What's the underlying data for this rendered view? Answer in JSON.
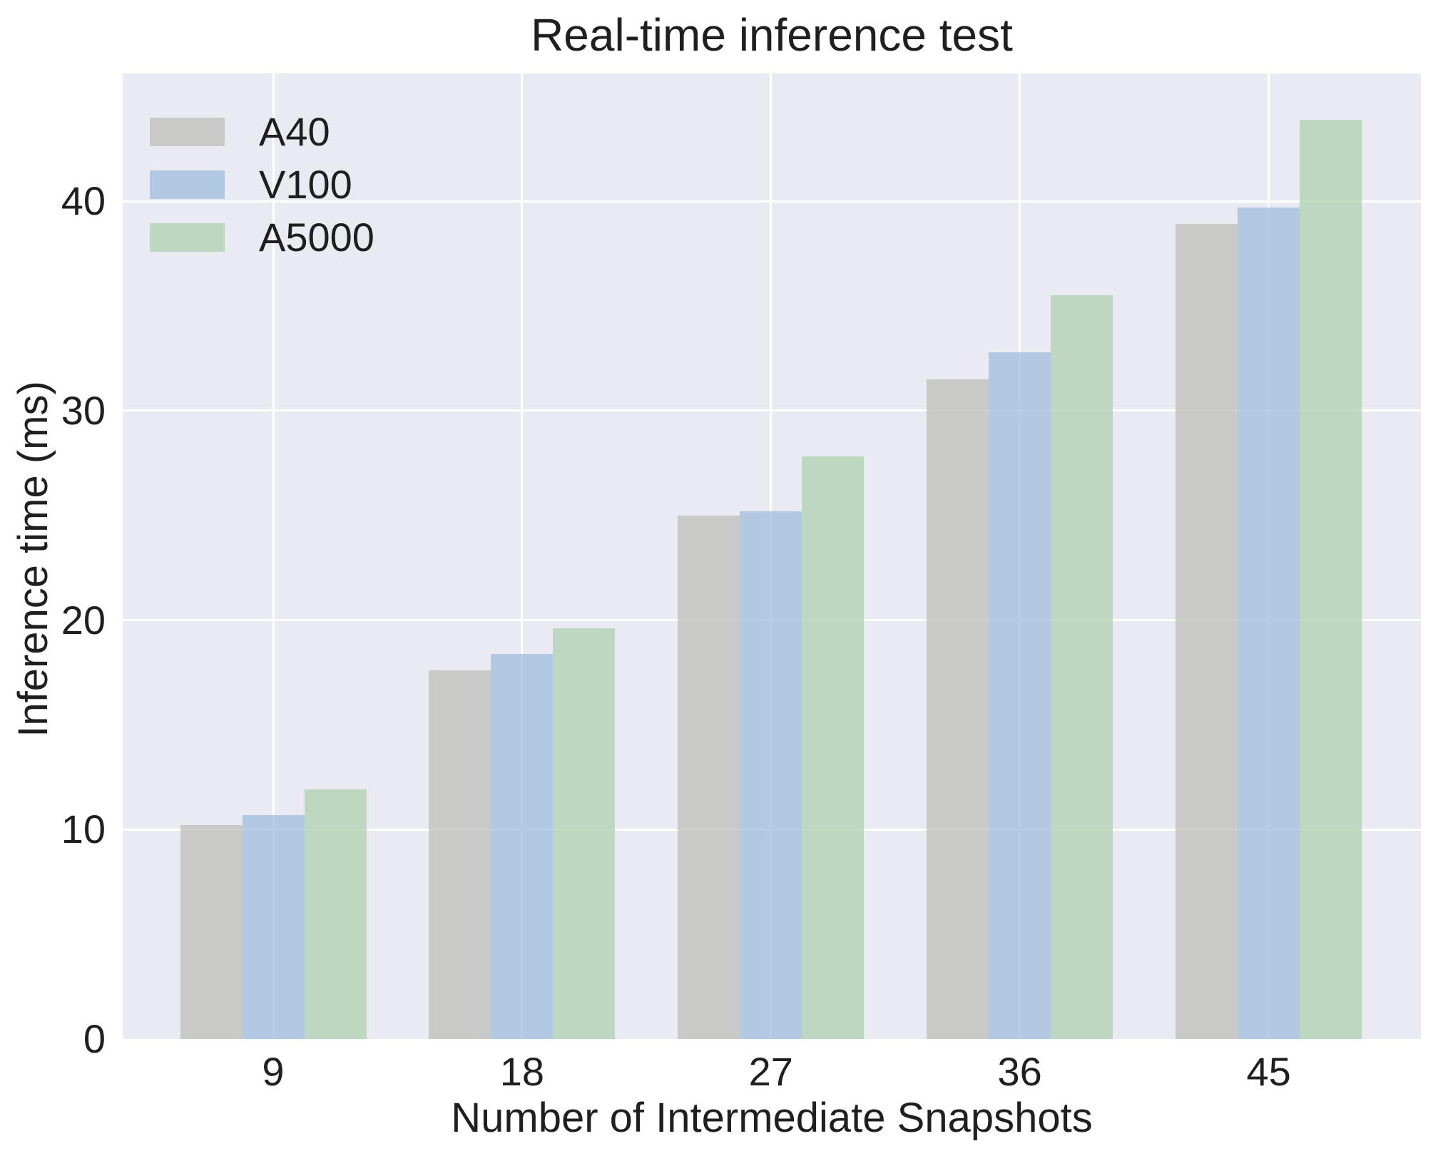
{
  "chart_data": {
    "type": "bar",
    "title": "Real-time inference test",
    "xlabel": "Number of Intermediate Snapshots",
    "ylabel": "Inference time (ms)",
    "categories": [
      "9",
      "18",
      "27",
      "36",
      "45"
    ],
    "series": [
      {
        "name": "A40",
        "color": "#c1c0bc",
        "values": [
          10.2,
          17.6,
          25.0,
          31.5,
          38.9
        ]
      },
      {
        "name": "V100",
        "color": "#a2c1de",
        "values": [
          10.7,
          18.4,
          25.2,
          32.8,
          39.7
        ]
      },
      {
        "name": "A5000",
        "color": "#b1d2b4",
        "values": [
          11.9,
          19.6,
          27.8,
          35.5,
          43.9
        ]
      }
    ],
    "yticks": [
      0,
      10,
      20,
      30,
      40
    ],
    "ylim": [
      0,
      46.1
    ],
    "grid": true,
    "legend_position": "upper left",
    "bar_alpha": 0.8,
    "colors": {
      "plot_bg": "#eaebf2",
      "grid": "#ffffff",
      "text": "#1f1f1f",
      "figure_bg": "#ffffff"
    }
  }
}
